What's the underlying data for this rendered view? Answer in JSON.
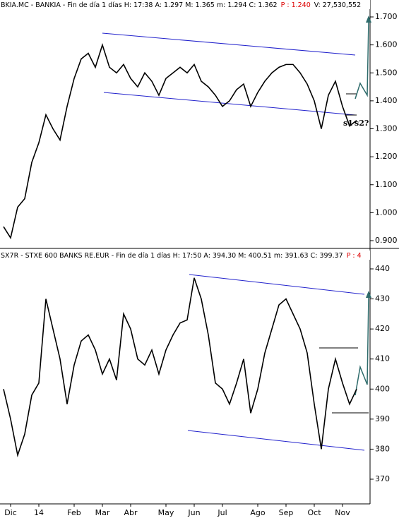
{
  "chart_data": [
    {
      "type": "line",
      "header": [
        "BKIA.MC - BANKIA - Fin de día 1 días H: 17:38 A: 1.297 M: 1.365 m: 1.294 C: 1.362",
        "P : 1.240",
        "V: 27,530,552"
      ],
      "annotations": [
        "s1",
        "s2?"
      ],
      "series": [
        {
          "color": "#000000",
          "values": [
            0.95,
            0.91,
            1.02,
            1.05,
            1.18,
            1.25,
            1.35,
            1.3,
            1.26,
            1.38,
            1.48,
            1.55,
            1.57,
            1.52,
            1.6,
            1.52,
            1.5,
            1.53,
            1.48,
            1.45,
            1.5,
            1.47,
            1.42,
            1.48,
            1.5,
            1.52,
            1.5,
            1.53,
            1.47,
            1.45,
            1.42,
            1.38,
            1.4,
            1.44,
            1.46,
            1.38,
            1.43,
            1.47,
            1.5,
            1.52,
            1.53,
            1.53,
            1.5,
            1.46,
            1.4,
            1.3,
            1.42,
            1.47,
            1.38,
            1.31,
            1.33
          ]
        }
      ],
      "ylim": [
        0.9,
        1.7
      ],
      "yticks": [
        {
          "value": 0.9,
          "label": "0.900"
        },
        {
          "value": 1.0,
          "label": "1.000"
        },
        {
          "value": 1.1,
          "label": "1.100"
        },
        {
          "value": 1.2,
          "label": "1.200"
        },
        {
          "value": 1.3,
          "label": "1.300"
        },
        {
          "value": 1.4,
          "label": "1.400"
        },
        {
          "value": 1.5,
          "label": "1.500"
        },
        {
          "value": 1.6,
          "label": "1.600"
        },
        {
          "value": 1.7,
          "label": "1.700"
        }
      ]
    },
    {
      "type": "line",
      "header": [
        "SX7R - STXE 600 BANKS RE.EUR - Fin de día 1 días H: 17:50 A: 394.30 M: 400.51 m: 391.63 C: 399.37",
        "P : 4"
      ],
      "categories": [
        null,
        "Dic",
        null,
        null,
        null,
        "14",
        null,
        null,
        null,
        null,
        "Feb",
        null,
        null,
        null,
        "Mar",
        null,
        null,
        null,
        "Abr",
        null,
        null,
        null,
        null,
        "May",
        null,
        null,
        null,
        "Jun",
        null,
        null,
        null,
        "Jul",
        null,
        null,
        null,
        null,
        "Ago",
        null,
        null,
        null,
        "Sep",
        null,
        null,
        null,
        "Oct",
        null,
        null,
        null,
        "Nov",
        null,
        null
      ],
      "series": [
        {
          "color": "#000000",
          "values": [
            400,
            390,
            378,
            385,
            398,
            402,
            430,
            420,
            410,
            395,
            408,
            416,
            418,
            413,
            405,
            410,
            403,
            425,
            420,
            410,
            408,
            413,
            405,
            413,
            418,
            422,
            423,
            437,
            430,
            418,
            402,
            400,
            395,
            402,
            410,
            392,
            400,
            412,
            420,
            428,
            430,
            425,
            420,
            412,
            395,
            380,
            400,
            410,
            402,
            395,
            400
          ]
        }
      ],
      "ylim": [
        370,
        440
      ],
      "yticks": [
        370,
        380,
        390,
        400,
        410,
        420,
        430,
        440
      ]
    }
  ]
}
